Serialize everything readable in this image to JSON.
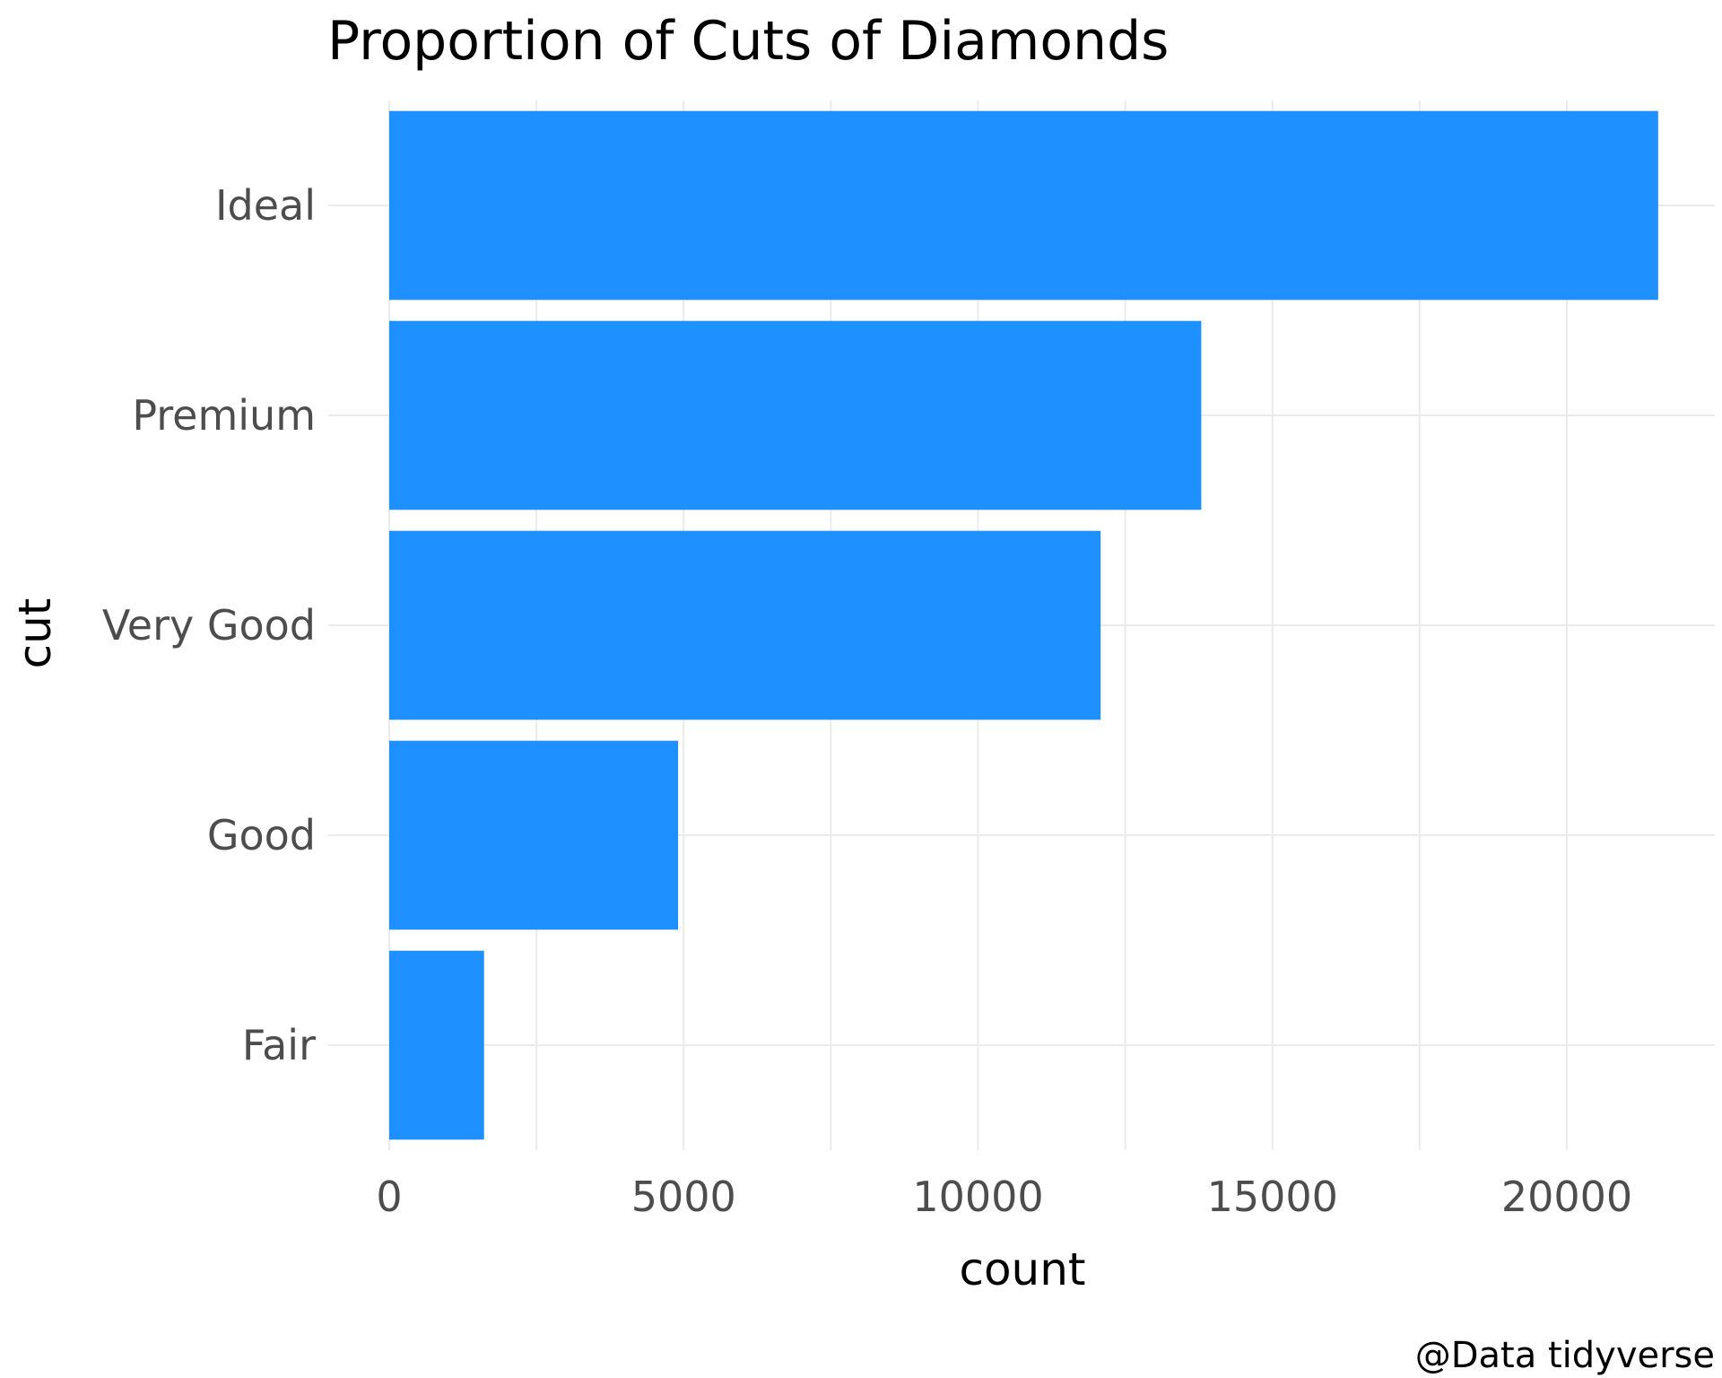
{
  "colors": {
    "bar": "#1E90FF",
    "grid": "#EBEBEB",
    "tick_text": "#4D4D4D",
    "text": "#000000",
    "background": "#FFFFFF"
  },
  "chart_data": {
    "type": "bar",
    "orientation": "horizontal",
    "title": "Proportion of Cuts of Diamonds",
    "xlabel": "count",
    "ylabel": "cut",
    "caption": "@Data tidyverse",
    "categories": [
      "Ideal",
      "Premium",
      "Very Good",
      "Good",
      "Fair"
    ],
    "values": [
      21551,
      13791,
      12082,
      4906,
      1610
    ],
    "xlim": [
      0,
      22600
    ],
    "xticks": [
      0,
      5000,
      10000,
      15000,
      20000
    ],
    "xtick_labels": [
      "0",
      "5000",
      "10000",
      "15000",
      "20000"
    ],
    "grid": true,
    "legend": "none"
  }
}
